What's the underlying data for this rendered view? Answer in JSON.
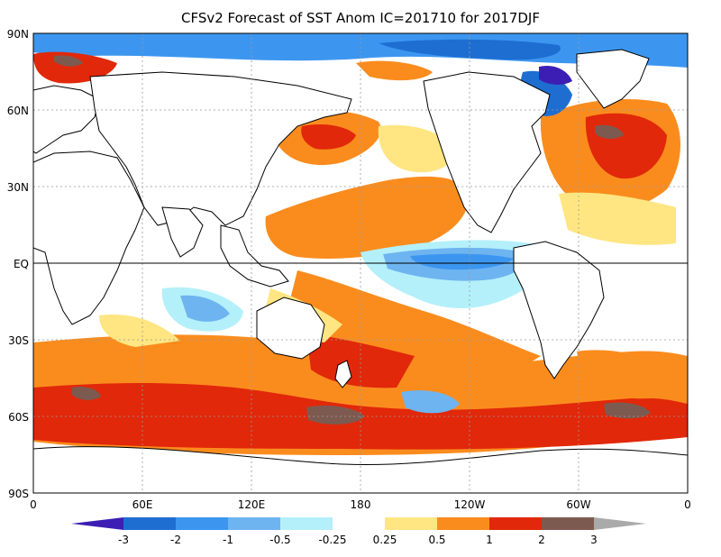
{
  "title": "CFSv2 Forecast of SST Anom  IC=201710 for 2017DJF",
  "lat_labels": [
    "90N",
    "60N",
    "30N",
    "EQ",
    "30S",
    "60S",
    "90S"
  ],
  "lon_labels": [
    "0",
    "60E",
    "120E",
    "180",
    "120W",
    "60W",
    "0"
  ],
  "colorbar": {
    "labels": [
      "-3",
      "-2",
      "-1",
      "-0.5",
      "-0.25",
      "0.25",
      "0.5",
      "1",
      "2",
      "3"
    ],
    "colors": [
      "#3c1eb4",
      "#1e6ed2",
      "#3c96f0",
      "#6eb4f0",
      "#b4f0fa",
      "#ffffff",
      "#ffe682",
      "#fa8c1e",
      "#e1280a",
      "#7d5a50",
      "#aaaaaa"
    ]
  },
  "colors": {
    "ocean_neutral": "#ffffff",
    "land": "#ffffff",
    "coast": "#000000"
  }
}
